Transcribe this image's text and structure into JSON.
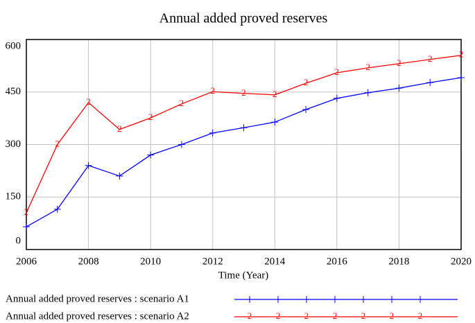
{
  "chart_data": {
    "type": "line",
    "title": "Annual added proved reserves",
    "x_label": "Time (Year)",
    "x": [
      2006,
      2007,
      2008,
      2009,
      2010,
      2011,
      2012,
      2013,
      2014,
      2015,
      2016,
      2017,
      2018,
      2019,
      2020
    ],
    "xlim": [
      2006,
      2020
    ],
    "xticks": [
      2006,
      2008,
      2010,
      2012,
      2014,
      2016,
      2018,
      2020
    ],
    "ylim": [
      0,
      600
    ],
    "yticks": [
      0,
      150,
      300,
      450,
      600
    ],
    "grid": true,
    "series": [
      {
        "name": "Annual added proved reserves : scenario A1",
        "color": "#0000ff",
        "marker": "+",
        "values": [
          65,
          115,
          240,
          210,
          270,
          300,
          333,
          348,
          364,
          400,
          432,
          448,
          461,
          477,
          491
        ]
      },
      {
        "name": "Annual added proved reserves : scenario A2",
        "color": "#ff0000",
        "marker": "2",
        "values": [
          105,
          300,
          420,
          343,
          376,
          416,
          451,
          446,
          442,
          475,
          505,
          519,
          531,
          543,
          555
        ]
      }
    ]
  }
}
